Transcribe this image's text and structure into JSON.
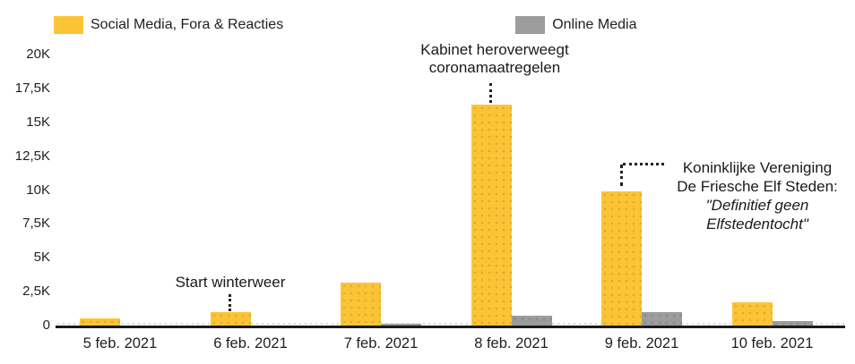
{
  "legend": {
    "items": [
      {
        "label": "Social Media, Fora & Reacties",
        "color": "#FBC437"
      },
      {
        "label": "Online Media",
        "color": "#9C9C9C"
      }
    ]
  },
  "chart_data": {
    "type": "bar",
    "title": "",
    "categories": [
      "5 feb. 2021",
      "6 feb. 2021",
      "7 feb. 2021",
      "8 feb. 2021",
      "9 feb. 2021",
      "10 feb. 2021"
    ],
    "series": [
      {
        "name": "Social Media, Fora & Reacties",
        "color": "#FBC437",
        "values": [
          500,
          1000,
          3200,
          16300,
          9900,
          1700
        ]
      },
      {
        "name": "Online Media",
        "color": "#9C9C9C",
        "values": [
          0,
          0,
          150,
          700,
          1000,
          300
        ]
      }
    ],
    "ylabel": "",
    "xlabel": "",
    "ylim": [
      0,
      20000
    ],
    "yticks": [
      {
        "value": 0,
        "label": "0"
      },
      {
        "value": 2500,
        "label": "2,5K"
      },
      {
        "value": 5000,
        "label": "5K"
      },
      {
        "value": 7500,
        "label": "7,5K"
      },
      {
        "value": 10000,
        "label": "10K"
      },
      {
        "value": 12500,
        "label": "12,5K"
      },
      {
        "value": 15000,
        "label": "15K"
      },
      {
        "value": 17500,
        "label": "17,5K"
      },
      {
        "value": 20000,
        "label": "20K"
      }
    ],
    "grid": false,
    "legend_position": "top-left",
    "annotations": [
      {
        "text": "Start winterweer",
        "target": "6 feb. 2021"
      },
      {
        "text": "Kabinet heroverweegt coronamaatregelen",
        "target": "8 feb. 2021"
      },
      {
        "lines": [
          "Koninklijke Vereniging",
          "De Friesche Elf Steden:",
          "\"Definitief geen",
          "Elfstedentocht\""
        ],
        "target": "9 feb. 2021"
      }
    ]
  },
  "colors": {
    "series_social_media": "#FBC437",
    "series_online_media": "#9C9C9C",
    "axis_line": "#1B1B1B",
    "label_text": "#1F1F1F"
  }
}
